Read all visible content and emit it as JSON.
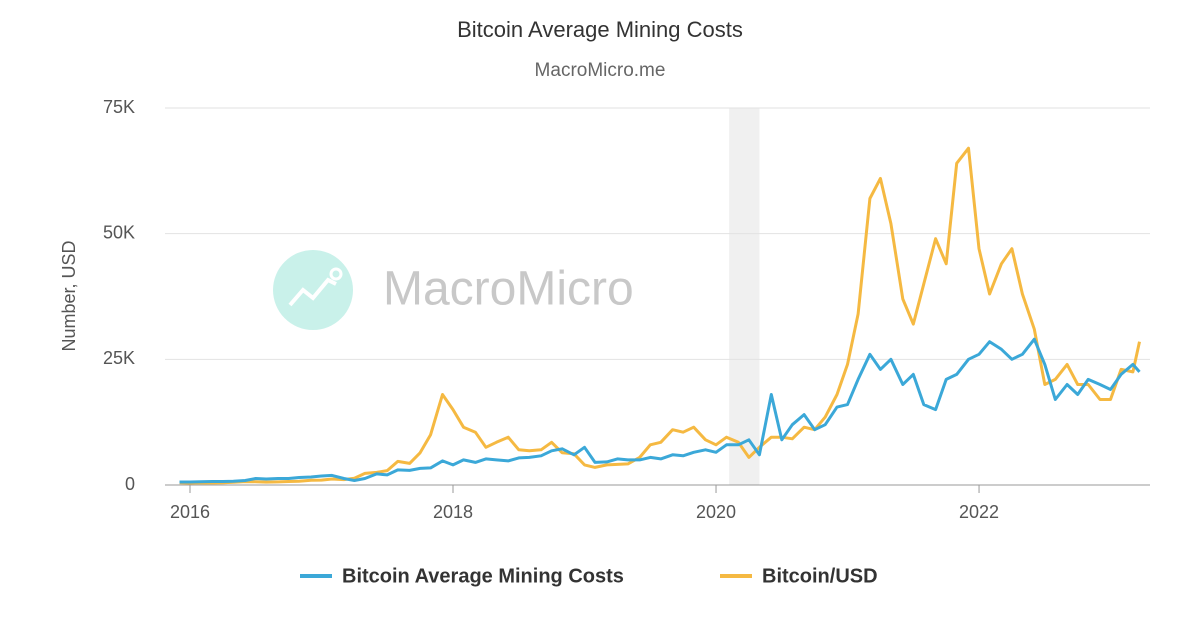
{
  "chart_data": {
    "type": "line",
    "title": "Bitcoin Average Mining Costs",
    "subtitle": "MacroMicro.me",
    "watermark": "MacroMicro",
    "ylabel": "Number, USD",
    "xlim": [
      2015.81,
      2023.3
    ],
    "xticks": [
      2016,
      2018,
      2020,
      2022
    ],
    "ylim": [
      0,
      75000
    ],
    "yticks": [
      {
        "value": 0,
        "label": "0"
      },
      {
        "value": 25000,
        "label": "25K"
      },
      {
        "value": 50000,
        "label": "50K"
      },
      {
        "value": 75000,
        "label": "75K"
      }
    ],
    "grid": true,
    "legend": "bottom",
    "shaded_regions": [
      [
        2020.1,
        2020.33
      ]
    ],
    "x": [
      2015.92,
      2016.0,
      2016.08,
      2016.17,
      2016.25,
      2016.33,
      2016.42,
      2016.5,
      2016.58,
      2016.67,
      2016.75,
      2016.83,
      2016.92,
      2017.0,
      2017.08,
      2017.17,
      2017.25,
      2017.33,
      2017.42,
      2017.5,
      2017.58,
      2017.67,
      2017.75,
      2017.83,
      2017.92,
      2018.0,
      2018.08,
      2018.17,
      2018.25,
      2018.33,
      2018.42,
      2018.5,
      2018.58,
      2018.67,
      2018.75,
      2018.83,
      2018.92,
      2019.0,
      2019.08,
      2019.17,
      2019.25,
      2019.33,
      2019.42,
      2019.5,
      2019.58,
      2019.67,
      2019.75,
      2019.83,
      2019.92,
      2020.0,
      2020.08,
      2020.17,
      2020.25,
      2020.33,
      2020.42,
      2020.5,
      2020.58,
      2020.67,
      2020.75,
      2020.83,
      2020.92,
      2021.0,
      2021.08,
      2021.17,
      2021.25,
      2021.33,
      2021.42,
      2021.5,
      2021.58,
      2021.67,
      2021.75,
      2021.83,
      2021.92,
      2022.0,
      2022.08,
      2022.17,
      2022.25,
      2022.33,
      2022.42,
      2022.5,
      2022.58,
      2022.67,
      2022.75,
      2022.83,
      2022.92,
      2023.0,
      2023.08,
      2023.17,
      2023.22
    ],
    "series": [
      {
        "name": "Bitcoin Average Mining Costs",
        "color": "#3ba8d8",
        "values": [
          600,
          600,
          650,
          700,
          700,
          750,
          900,
          1300,
          1200,
          1300,
          1300,
          1500,
          1600,
          1800,
          1900,
          1300,
          900,
          1300,
          2200,
          2000,
          3000,
          2900,
          3300,
          3400,
          4800,
          4000,
          5000,
          4500,
          5200,
          5000,
          4800,
          5400,
          5500,
          5800,
          6800,
          7200,
          6000,
          7500,
          4500,
          4600,
          5200,
          5000,
          5000,
          5500,
          5200,
          6000,
          5800,
          6500,
          7000,
          6500,
          8000,
          8000,
          9000,
          6000,
          18000,
          9000,
          12000,
          14000,
          11000,
          12000,
          15500,
          16000,
          21000,
          26000,
          23000,
          25000,
          20000,
          22000,
          16000,
          15000,
          21000,
          22000,
          25000,
          26000,
          28500,
          27000,
          25000,
          26000,
          29000,
          24000,
          17000,
          20000,
          18000,
          21000,
          20000,
          19000,
          22000,
          24000,
          22500
        ]
      },
      {
        "name": "Bitcoin/USD",
        "color": "#f5b942",
        "values": [
          430,
          400,
          430,
          420,
          450,
          530,
          670,
          650,
          580,
          610,
          700,
          740,
          960,
          970,
          1190,
          1080,
          1350,
          2300,
          2500,
          2870,
          4700,
          4300,
          6400,
          10000,
          18000,
          15000,
          11500,
          10500,
          7500,
          8500,
          9500,
          7000,
          6800,
          7000,
          8500,
          6400,
          6200,
          4000,
          3500,
          4000,
          4100,
          4200,
          5500,
          8000,
          8500,
          11000,
          10500,
          11500,
          9000,
          8000,
          9500,
          8500,
          5500,
          7500,
          9500,
          9500,
          9200,
          11500,
          11000,
          13500,
          18000,
          24000,
          34000,
          57000,
          61000,
          52000,
          37000,
          32000,
          40000,
          49000,
          44000,
          64000,
          67000,
          47000,
          38000,
          44000,
          47000,
          38000,
          31000,
          20000,
          21000,
          24000,
          20000,
          20000,
          17000,
          17000,
          23000,
          22500,
          28500
        ]
      }
    ]
  }
}
